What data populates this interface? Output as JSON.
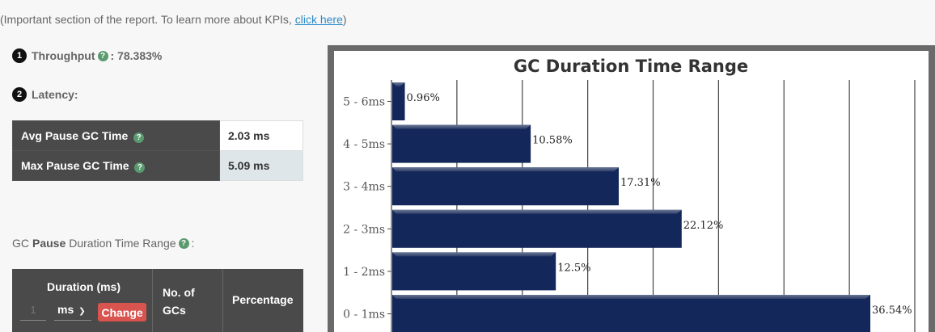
{
  "intro": {
    "text": "(Important section of the report. To learn more about KPIs, ",
    "link": "click here",
    "suffix": ")"
  },
  "kpis": {
    "throughput": {
      "number": "1",
      "label": "Throughput",
      "value": " : 78.383%"
    },
    "latency": {
      "number": "2",
      "label": "Latency:"
    }
  },
  "latency_table": [
    {
      "label": "Avg Pause GC Time",
      "value": "2.03 ms"
    },
    {
      "label": "Max Pause GC Time",
      "value": "5.09 ms"
    }
  ],
  "gc_pause": {
    "prefix": "GC",
    "bold": "Pause",
    "suffix": "Duration Time Range",
    "colon": ":"
  },
  "duration_table": {
    "col1": "Duration (ms)",
    "col2_line1": "No. of",
    "col2_line2": "GCs",
    "col3": "Percentage",
    "input_placeholder": "1",
    "unit": "ms",
    "change_label": "Change"
  },
  "icons": {
    "help": "question-circle-icon",
    "chevron": "chevron-down-icon"
  },
  "colors": {
    "bar": "#14275a",
    "header_bg": "#4a4a4a",
    "change_btn": "#d9534f",
    "link": "#2b8bc8"
  },
  "chart_data": {
    "type": "bar",
    "orientation": "horizontal",
    "title": "GC Duration Time Range",
    "categories": [
      "5 - 6ms",
      "4 - 5ms",
      "3 - 4ms",
      "2 - 3ms",
      "1 - 2ms",
      "0 - 1ms"
    ],
    "values": [
      0.96,
      10.58,
      17.31,
      22.12,
      12.5,
      36.54
    ],
    "value_labels": [
      "0.96%",
      "10.58%",
      "17.31%",
      "22.12%",
      "12.5%",
      "36.54%"
    ],
    "xlim": [
      0,
      40
    ],
    "grid": true
  }
}
